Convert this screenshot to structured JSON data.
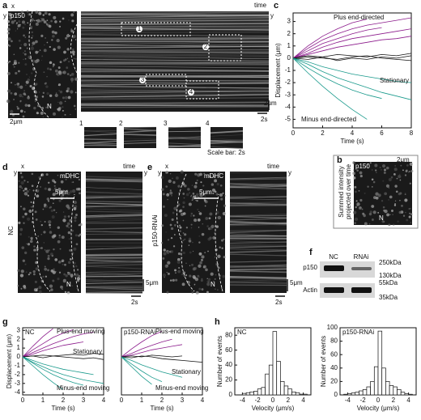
{
  "figure": {
    "labels": [
      "a",
      "b",
      "c",
      "d",
      "e",
      "f",
      "g",
      "h"
    ],
    "a": {
      "image_label": "p150",
      "nucleus": "N",
      "x": "x",
      "y": "y",
      "time": "time",
      "scale_left": "2μm",
      "scale_kymo_x": "2s",
      "scale_kymo_y": "2μm",
      "roi": [
        "1",
        "2",
        "3",
        "4"
      ],
      "scale_note": "Scale bar: 2s"
    },
    "b": {
      "image_label": "p150",
      "scale": "2μm",
      "nucleus": "N",
      "caption": [
        "Summed intensity",
        "projected over time"
      ]
    },
    "d": {
      "condition": "NC",
      "image_label": "mDHC",
      "scale": "5μm",
      "nucleus": "N",
      "x": "x",
      "y": "y",
      "time": "time",
      "scale_t": "2s",
      "scale_y": "5μm"
    },
    "e": {
      "condition": "p150-RNAi",
      "image_label": "mDHC",
      "scale": "5μm",
      "nucleus": "N",
      "x": "x",
      "y": "y",
      "time": "time",
      "scale_t": "2s",
      "scale_y": "5μm"
    },
    "f": {
      "lanes": [
        "NC",
        "RNAi"
      ],
      "rows": [
        "p150",
        "Actin"
      ],
      "markers": [
        "250kDa",
        "130kDa",
        "55kDa",
        "35kDa"
      ]
    }
  },
  "chart_data": [
    {
      "type": "line",
      "xlabel": "Time (s)",
      "ylabel": "Displacement (μm)",
      "x": [
        0,
        1,
        2,
        3,
        4,
        5,
        6,
        7,
        8
      ],
      "xlim": [
        0,
        8
      ],
      "xticks": [
        0,
        2,
        4,
        6,
        8
      ],
      "ylim": [
        -5.7,
        3.7
      ],
      "yticks": [
        -5,
        -4,
        -3,
        -2,
        -1,
        0,
        1,
        2,
        3
      ],
      "annotations": [
        {
          "text": "Plus end-directed",
          "color": "#8b1a8b"
        },
        {
          "text": "Stationary",
          "color": "#111111"
        },
        {
          "text": "Minus end-directed",
          "color": "#1a9a8c"
        }
      ],
      "series": [
        {
          "color": "#8b1a8b",
          "values": [
            0,
            0.8,
            1.5,
            2.0,
            2.4,
            2.7,
            2.9,
            3.1,
            3.3
          ]
        },
        {
          "color": "#8b1a8b",
          "values": [
            0,
            0.6,
            1.2,
            1.6,
            2.0,
            2.3,
            2.5,
            null,
            null
          ]
        },
        {
          "color": "#8b1a8b",
          "values": [
            0,
            0.4,
            0.9,
            1.3,
            1.6,
            1.8,
            2.0,
            2.2,
            2.4
          ]
        },
        {
          "color": "#8b1a8b",
          "values": [
            0,
            1.0,
            1.8,
            2.4,
            2.9,
            3.2,
            null,
            null,
            null
          ]
        },
        {
          "color": "#8b1a8b",
          "values": [
            0,
            0.3,
            0.6,
            0.9,
            1.1,
            1.3,
            1.5,
            1.6,
            1.8
          ]
        },
        {
          "color": "#111111",
          "values": [
            0,
            0.2,
            0.1,
            0.3,
            0.2,
            0.1,
            0.3,
            0.2,
            0.4
          ]
        },
        {
          "color": "#111111",
          "values": [
            0,
            -0.1,
            0.1,
            -0.2,
            0,
            -0.1,
            0.1,
            0,
            0.2
          ]
        },
        {
          "color": "#111111",
          "values": [
            0,
            0.1,
            0,
            -0.1,
            0.1,
            0.2,
            0,
            -0.1,
            -0.2
          ]
        },
        {
          "color": "#1a9a8c",
          "values": [
            0,
            -0.8,
            -1.5,
            -2.1,
            -2.6,
            -3.0,
            -3.3,
            null,
            null
          ]
        },
        {
          "color": "#1a9a8c",
          "values": [
            0,
            -0.5,
            -1.1,
            -1.6,
            -2.0,
            -2.4,
            -2.8,
            -3.1,
            -3.4
          ]
        },
        {
          "color": "#1a9a8c",
          "values": [
            0,
            -1.2,
            -2.3,
            -3.3,
            -4.2,
            -5.0,
            null,
            null,
            null
          ]
        },
        {
          "color": "#1a9a8c",
          "values": [
            0,
            -0.3,
            -0.7,
            -1.0,
            -1.3,
            -1.5,
            -1.7,
            -1.9,
            -2.0
          ]
        }
      ]
    },
    {
      "type": "line",
      "title": "NC",
      "xlabel": "Time (s)",
      "ylabel": "Displacement (μm)",
      "x": [
        0,
        0.5,
        1,
        1.5,
        2,
        2.5,
        3,
        3.5,
        4
      ],
      "xlim": [
        0,
        4
      ],
      "xticks": [
        0,
        1,
        2,
        3,
        4
      ],
      "ylim": [
        -4.3,
        3.3
      ],
      "yticks": [
        -4,
        -3,
        -2,
        -1,
        0,
        1,
        2,
        3
      ],
      "annotations": [
        {
          "text": "Plus-end moving",
          "color": "#8b1a8b"
        },
        {
          "text": "Stationary",
          "color": "#111111"
        },
        {
          "text": "Minus-end moving",
          "color": "#1a9a8c"
        }
      ],
      "series": [
        {
          "color": "#8b1a8b",
          "values": [
            0,
            0.8,
            1.5,
            2.2,
            2.7,
            3.1,
            null,
            null,
            null
          ]
        },
        {
          "color": "#8b1a8b",
          "values": [
            0,
            0.5,
            1.0,
            1.5,
            1.9,
            2.3,
            2.6,
            2.8,
            null
          ]
        },
        {
          "color": "#8b1a8b",
          "values": [
            0,
            0.3,
            0.7,
            1.0,
            1.3,
            1.5,
            1.7,
            null,
            null
          ]
        },
        {
          "color": "#8b1a8b",
          "values": [
            0,
            1.2,
            2.3,
            3.2,
            null,
            null,
            null,
            null,
            null
          ]
        },
        {
          "color": "#111111",
          "values": [
            0,
            0.1,
            -0.1,
            0.1,
            0,
            -0.1,
            -0.2,
            -0.1,
            -0.3
          ]
        },
        {
          "color": "#111111",
          "values": [
            0,
            0.1,
            0.2,
            0.1,
            0.2,
            0.3,
            0.2,
            0.4,
            0.3
          ]
        },
        {
          "color": "#1a9a8c",
          "values": [
            0,
            -0.7,
            -1.4,
            -2.0,
            -2.5,
            -2.9,
            -3.2,
            null,
            null
          ]
        },
        {
          "color": "#1a9a8c",
          "values": [
            0,
            -1.0,
            -2.0,
            -2.9,
            -3.7,
            null,
            null,
            null,
            null
          ]
        },
        {
          "color": "#1a9a8c",
          "values": [
            0,
            -0.4,
            -0.8,
            -1.1,
            -1.4,
            -1.6,
            -1.8,
            -2.0,
            null
          ]
        },
        {
          "color": "#1a9a8c",
          "values": [
            0,
            -0.6,
            -1.1,
            -1.6,
            -2.0,
            -2.3,
            -2.6,
            -2.8,
            -3.0
          ]
        }
      ]
    },
    {
      "type": "line",
      "title": "p150-RNAi",
      "xlabel": "Time (s)",
      "x": [
        0,
        0.5,
        1,
        1.5,
        2,
        2.5,
        3,
        3.5,
        4
      ],
      "xlim": [
        0,
        4
      ],
      "xticks": [
        0,
        1,
        2,
        3,
        4
      ],
      "ylim": [
        -4.3,
        3.3
      ],
      "annotations": [
        {
          "text": "Plus-end moving",
          "color": "#8b1a8b"
        },
        {
          "text": "Stationary",
          "color": "#111111"
        },
        {
          "text": "Minus-end moving",
          "color": "#1a9a8c"
        }
      ],
      "series": [
        {
          "color": "#8b1a8b",
          "values": [
            0,
            0.9,
            1.7,
            2.4,
            2.9,
            null,
            null,
            null,
            null
          ]
        },
        {
          "color": "#8b1a8b",
          "values": [
            0,
            0.4,
            0.9,
            1.3,
            1.7,
            2.0,
            null,
            null,
            null
          ]
        },
        {
          "color": "#8b1a8b",
          "values": [
            0,
            0.2,
            0.5,
            0.8,
            1.0,
            1.2,
            1.4,
            null,
            null
          ]
        },
        {
          "color": "#111111",
          "values": [
            0,
            -0.1,
            0.1,
            0,
            -0.2,
            -0.3,
            -0.4,
            -0.5,
            -0.6
          ]
        },
        {
          "color": "#111111",
          "values": [
            0,
            0.1,
            0,
            0.2,
            0.1,
            0,
            0.1,
            null,
            null
          ]
        },
        {
          "color": "#1a9a8c",
          "values": [
            0,
            -0.8,
            -1.6,
            -2.3,
            -2.8,
            null,
            null,
            null,
            null
          ]
        },
        {
          "color": "#1a9a8c",
          "values": [
            0,
            -0.4,
            -0.9,
            -1.3,
            -1.7,
            -2.0,
            -2.3,
            null,
            null
          ]
        },
        {
          "color": "#1a9a8c",
          "values": [
            0,
            -1.1,
            -2.2,
            -3.1,
            null,
            null,
            null,
            null,
            null
          ]
        }
      ]
    },
    {
      "type": "histogram",
      "title": "NC",
      "xlabel": "Velocity (μm/s)",
      "ylabel": "Number of events",
      "bins": [
        -5,
        -4.5,
        -4,
        -3.5,
        -3,
        -2.5,
        -2,
        -1.5,
        -1,
        -0.5,
        0,
        0.5,
        1,
        1.5,
        2,
        2.5,
        3,
        3.5,
        4,
        4.5,
        5
      ],
      "values": [
        0,
        0,
        2,
        3,
        4,
        5,
        8,
        10,
        28,
        40,
        85,
        45,
        18,
        12,
        8,
        4,
        3,
        1,
        1,
        0
      ],
      "xlim": [
        -5,
        5
      ],
      "xticks": [
        -4,
        -2,
        0,
        2,
        4
      ],
      "ylim": [
        0,
        90
      ],
      "yticks": [
        0,
        20,
        40,
        60,
        80
      ]
    },
    {
      "type": "histogram",
      "title": "p150-RNAi",
      "xlabel": "Velocity (μm/s)",
      "ylabel": "Number of events",
      "bins": [
        -5,
        -4.5,
        -4,
        -3.5,
        -3,
        -2.5,
        -2,
        -1.5,
        -1,
        -0.5,
        0,
        0.5,
        1,
        1.5,
        2,
        2.5,
        3,
        3.5,
        4,
        4.5,
        5
      ],
      "values": [
        0,
        1,
        2,
        3,
        4,
        6,
        8,
        12,
        20,
        42,
        95,
        40,
        20,
        14,
        12,
        8,
        4,
        2,
        1,
        0
      ],
      "xlim": [
        -5,
        5
      ],
      "xticks": [
        -4,
        -2,
        0,
        2,
        4
      ],
      "ylim": [
        0,
        100
      ],
      "yticks": [
        0,
        20,
        40,
        60,
        80,
        100
      ]
    }
  ]
}
